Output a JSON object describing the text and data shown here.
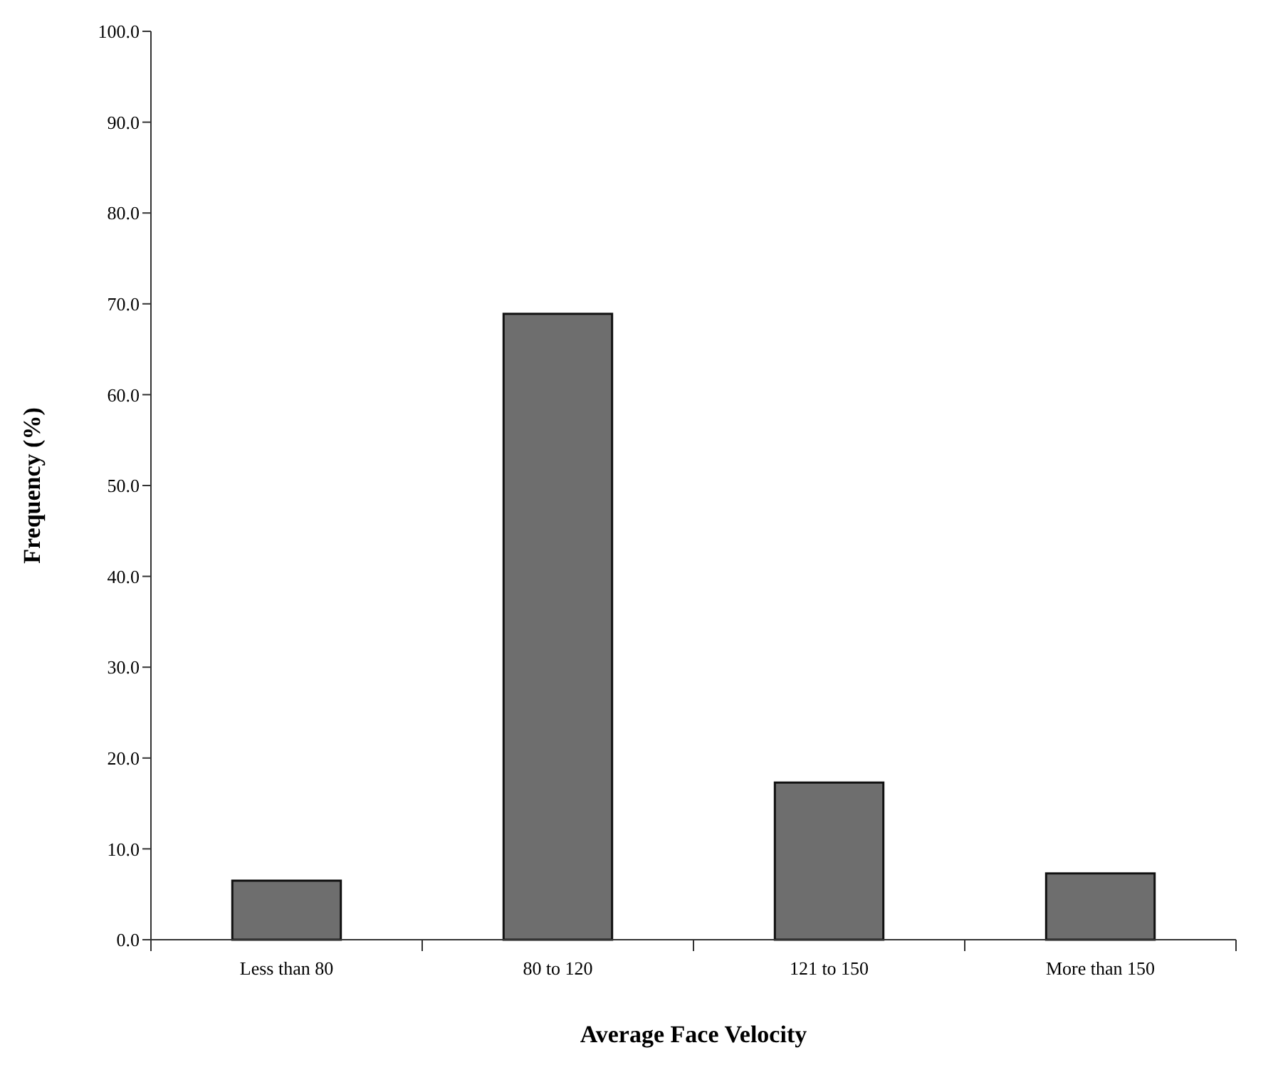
{
  "chart_data": {
    "type": "bar",
    "xlabel": "Average Face Velocity",
    "ylabel": "Frequency (%)",
    "categories": [
      "Less than 80",
      "80 to 120",
      "121 to 150",
      "More than 150"
    ],
    "values": [
      6.5,
      68.9,
      17.3,
      7.3
    ],
    "color": "#6e6e6e",
    "ylim": [
      0,
      100
    ],
    "yticks": [
      {
        "value": 0,
        "label": "0.0"
      },
      {
        "value": 10,
        "label": "10.0"
      },
      {
        "value": 20,
        "label": "20.0"
      },
      {
        "value": 30,
        "label": "30.0"
      },
      {
        "value": 40,
        "label": "40.0"
      },
      {
        "value": 50,
        "label": "50.0"
      },
      {
        "value": 60,
        "label": "60.0"
      },
      {
        "value": 70,
        "label": "70.0"
      },
      {
        "value": 80,
        "label": "80.0"
      },
      {
        "value": 90,
        "label": "90.0"
      },
      {
        "value": 100,
        "label": "100.0"
      }
    ],
    "grid": false
  }
}
